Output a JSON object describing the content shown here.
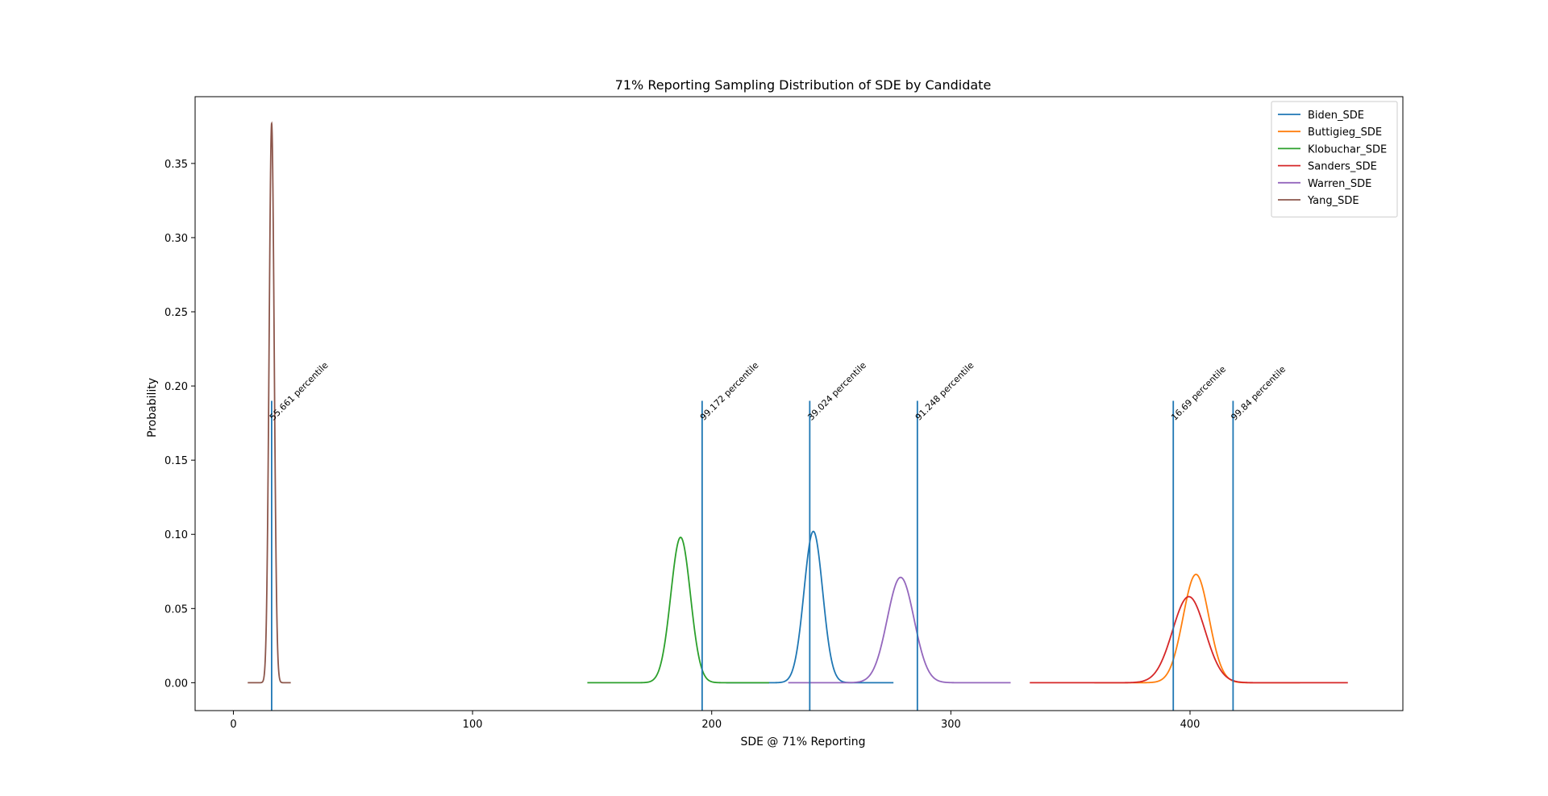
{
  "chart_data": {
    "type": "line",
    "title": "71% Reporting Sampling Distribution of SDE by Candidate",
    "xlabel": "SDE @ 71% Reporting",
    "ylabel": "Probability",
    "xlim": [
      -16,
      489
    ],
    "ylim": [
      -0.0188,
      0.395
    ],
    "xticks": [
      0,
      100,
      200,
      300,
      400
    ],
    "yticks": [
      0.0,
      0.05,
      0.1,
      0.15,
      0.2,
      0.25,
      0.3,
      0.35
    ],
    "ytick_labels": [
      "0.00",
      "0.05",
      "0.10",
      "0.15",
      "0.20",
      "0.25",
      "0.30",
      "0.35"
    ],
    "legend_position": "upper right",
    "grid": false,
    "series": [
      {
        "name": "Biden_SDE",
        "color": "#1f77b4",
        "mean": 242.5,
        "sd": 3.9,
        "peak": 0.102,
        "x_range": [
          206,
          276
        ]
      },
      {
        "name": "Buttigieg_SDE",
        "color": "#ff7f0e",
        "mean": 402.5,
        "sd": 5.4,
        "peak": 0.073,
        "x_range": [
          360,
          446
        ]
      },
      {
        "name": "Klobuchar_SDE",
        "color": "#2ca02c",
        "mean": 187.0,
        "sd": 4.1,
        "peak": 0.098,
        "x_range": [
          148,
          224
        ]
      },
      {
        "name": "Sanders_SDE",
        "color": "#d62728",
        "mean": 399.5,
        "sd": 6.8,
        "peak": 0.058,
        "x_range": [
          333,
          466
        ]
      },
      {
        "name": "Warren_SDE",
        "color": "#9467bd",
        "mean": 279.0,
        "sd": 5.6,
        "peak": 0.071,
        "x_range": [
          232,
          325
        ]
      },
      {
        "name": "Yang_SDE",
        "color": "#8c564b",
        "mean": 16.0,
        "sd": 1.06,
        "peak": 0.377,
        "x_range": [
          6,
          24
        ]
      }
    ],
    "vlines": [
      {
        "x": 16.0,
        "y_top": 0.19,
        "label": "55.661 percentile",
        "color": "#1f77b4"
      },
      {
        "x": 196.0,
        "y_top": 0.19,
        "label": "99.172 percentile",
        "color": "#1f77b4"
      },
      {
        "x": 241.0,
        "y_top": 0.19,
        "label": "39.024 percentile",
        "color": "#1f77b4"
      },
      {
        "x": 286.0,
        "y_top": 0.19,
        "label": "91.248 percentile",
        "color": "#1f77b4"
      },
      {
        "x": 393.0,
        "y_top": 0.19,
        "label": "16.69 percentile",
        "color": "#1f77b4"
      },
      {
        "x": 418.0,
        "y_top": 0.19,
        "label": "99.84 percentile",
        "color": "#1f77b4"
      }
    ]
  }
}
